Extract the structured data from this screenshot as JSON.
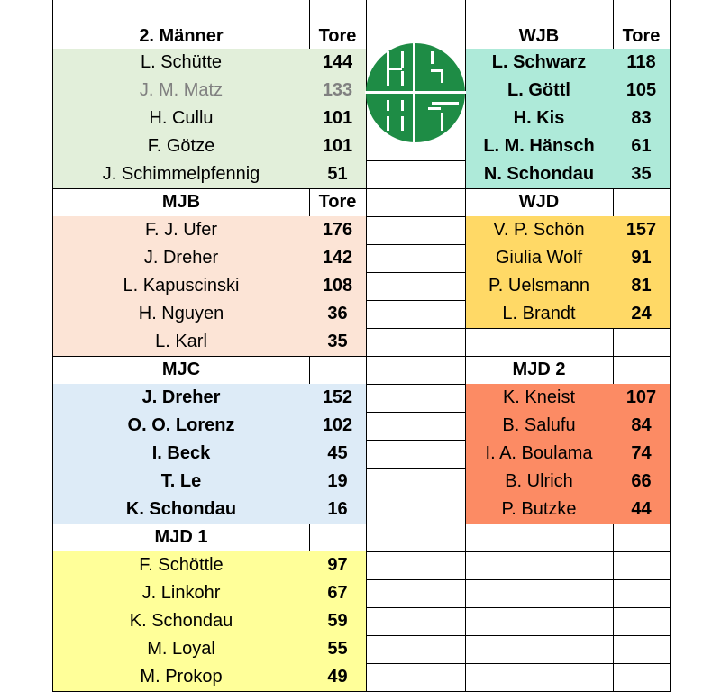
{
  "colors": {
    "maenner2": "#e2efda",
    "mjb": "#fce4d6",
    "mjc": "#ddebf7",
    "mjd1": "#ffff99",
    "wjb": "#aeead9",
    "wjd": "#ffd966",
    "mjd2": "#fc8b64",
    "logo_green": "#1e8c45",
    "muted_text": "#808080"
  },
  "logo": {
    "text": "HG 85",
    "icon": "club-logo"
  },
  "left": [
    {
      "title": "2. Männer",
      "goals_label": "Tore",
      "color": "maenner2",
      "bold_names": false,
      "players": [
        {
          "name": "L. Schütte",
          "goals": "144"
        },
        {
          "name": "J. M. Matz",
          "goals": "133",
          "muted": true
        },
        {
          "name": "H. Cullu",
          "goals": "101"
        },
        {
          "name": "F. Götze",
          "goals": "101"
        },
        {
          "name": "J. Schimmelpfennig",
          "goals": "51"
        }
      ]
    },
    {
      "title": "MJB",
      "goals_label": "Tore",
      "color": "mjb",
      "bold_names": false,
      "players": [
        {
          "name": "F. J. Ufer",
          "goals": "176"
        },
        {
          "name": "J. Dreher",
          "goals": "142"
        },
        {
          "name": "L. Kapuscinski",
          "goals": "108"
        },
        {
          "name": "H. Nguyen",
          "goals": "36"
        },
        {
          "name": "L. Karl",
          "goals": "35"
        }
      ]
    },
    {
      "title": "MJC",
      "goals_label": "",
      "color": "mjc",
      "bold_names": true,
      "players": [
        {
          "name": "J. Dreher",
          "goals": "152"
        },
        {
          "name": "O. O. Lorenz",
          "goals": "102"
        },
        {
          "name": "I. Beck",
          "goals": "45"
        },
        {
          "name": "T. Le",
          "goals": "19"
        },
        {
          "name": "K. Schondau",
          "goals": "16"
        }
      ]
    },
    {
      "title": "MJD 1",
      "goals_label": "",
      "color": "mjd1",
      "bold_names": false,
      "players": [
        {
          "name": "F. Schöttle",
          "goals": "97"
        },
        {
          "name": "J. Linkohr",
          "goals": "67"
        },
        {
          "name": "K. Schondau",
          "goals": "59"
        },
        {
          "name": "M. Loyal",
          "goals": "55"
        },
        {
          "name": "M. Prokop",
          "goals": "49"
        }
      ]
    }
  ],
  "right": [
    {
      "title": "WJB",
      "goals_label": "Tore",
      "color": "wjb",
      "bold_names": true,
      "players": [
        {
          "name": "L. Schwarz",
          "goals": "118"
        },
        {
          "name": "L. Göttl",
          "goals": "105"
        },
        {
          "name": "H. Kis",
          "goals": "83"
        },
        {
          "name": "L. M. Hänsch",
          "goals": "61"
        },
        {
          "name": "N. Schondau",
          "goals": "35"
        }
      ]
    },
    {
      "title": "WJD",
      "goals_label": "",
      "color": "wjd",
      "bold_names": false,
      "players": [
        {
          "name": "V. P. Schön",
          "goals": "157"
        },
        {
          "name": "Giulia Wolf",
          "goals": "91"
        },
        {
          "name": "P. Uelsmann",
          "goals": "81"
        },
        {
          "name": "L. Brandt",
          "goals": "24"
        }
      ]
    },
    {
      "title": "",
      "goals_label": "",
      "color": "",
      "bold_names": false,
      "players": []
    },
    {
      "title": "MJD 2",
      "goals_label": "",
      "color": "mjd2",
      "bold_names": false,
      "players": [
        {
          "name": "K. Kneist",
          "goals": "107"
        },
        {
          "name": "B. Salufu",
          "goals": "84"
        },
        {
          "name": "I. A. Boulama",
          "goals": "74"
        },
        {
          "name": "B. Ulrich",
          "goals": "66"
        },
        {
          "name": "P. Butzke",
          "goals": "44"
        }
      ]
    }
  ]
}
